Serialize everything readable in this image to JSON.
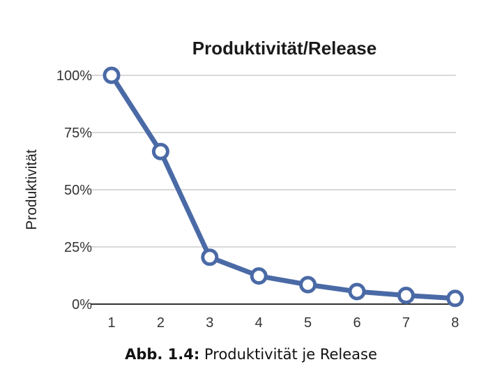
{
  "chart_data": {
    "type": "line",
    "title": "Produktivität/Release",
    "xlabel": "",
    "ylabel": "Produktivität",
    "x": [
      1,
      2,
      3,
      4,
      5,
      6,
      7,
      8
    ],
    "x_tick_labels": [
      "1",
      "2",
      "3",
      "4",
      "5",
      "6",
      "7",
      "8"
    ],
    "y_tick_labels": [
      "0%",
      "25%",
      "50%",
      "75%",
      "100%"
    ],
    "y_ticks": [
      0,
      25,
      50,
      75,
      100
    ],
    "ylim": [
      0,
      100
    ],
    "grid": true,
    "series": [
      {
        "values": [
          100,
          66.7,
          20.5,
          12.3,
          8.5,
          5.5,
          3.8,
          2.5
        ]
      }
    ],
    "colors": {
      "line": "#4a6aa6",
      "grid": "#cccccc",
      "axis": "#333333"
    }
  },
  "caption": {
    "label": "Abb. 1.4:",
    "text": " Produktivität je Release"
  }
}
